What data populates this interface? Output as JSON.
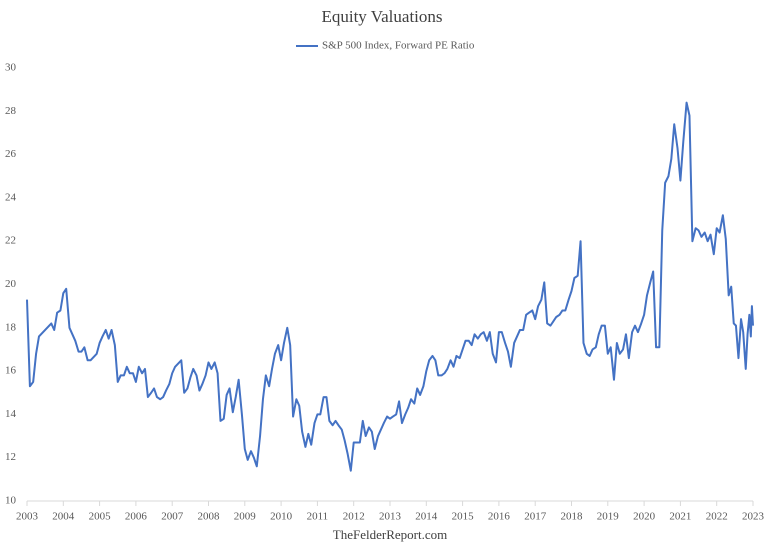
{
  "chart_data": {
    "type": "line",
    "title": "Equity Valuations",
    "source": "TheFelderReport.com",
    "x": [
      2003.0,
      2003.08,
      2003.17,
      2003.25,
      2003.33,
      2003.5,
      2003.67,
      2003.75,
      2003.83,
      2003.92,
      2004.0,
      2004.08,
      2004.17,
      2004.33,
      2004.42,
      2004.5,
      2004.58,
      2004.67,
      2004.75,
      2004.92,
      2005.0,
      2005.08,
      2005.17,
      2005.25,
      2005.33,
      2005.42,
      2005.5,
      2005.58,
      2005.67,
      2005.75,
      2005.83,
      2005.92,
      2006.0,
      2006.08,
      2006.17,
      2006.25,
      2006.33,
      2006.42,
      2006.5,
      2006.58,
      2006.67,
      2006.75,
      2006.83,
      2006.92,
      2007.0,
      2007.08,
      2007.25,
      2007.33,
      2007.42,
      2007.5,
      2007.58,
      2007.67,
      2007.75,
      2007.83,
      2007.92,
      2008.0,
      2008.08,
      2008.17,
      2008.25,
      2008.33,
      2008.42,
      2008.5,
      2008.58,
      2008.67,
      2008.75,
      2008.83,
      2008.92,
      2009.0,
      2009.08,
      2009.17,
      2009.25,
      2009.33,
      2009.42,
      2009.5,
      2009.58,
      2009.67,
      2009.75,
      2009.83,
      2009.92,
      2010.0,
      2010.08,
      2010.17,
      2010.25,
      2010.33,
      2010.42,
      2010.5,
      2010.58,
      2010.67,
      2010.75,
      2010.83,
      2010.92,
      2011.0,
      2011.08,
      2011.17,
      2011.25,
      2011.33,
      2011.42,
      2011.5,
      2011.58,
      2011.67,
      2011.75,
      2011.83,
      2011.92,
      2012.0,
      2012.08,
      2012.17,
      2012.25,
      2012.33,
      2012.42,
      2012.5,
      2012.58,
      2012.67,
      2012.75,
      2012.83,
      2012.92,
      2013.0,
      2013.08,
      2013.17,
      2013.25,
      2013.33,
      2013.42,
      2013.5,
      2013.58,
      2013.67,
      2013.75,
      2013.83,
      2013.92,
      2014.0,
      2014.08,
      2014.17,
      2014.25,
      2014.33,
      2014.42,
      2014.5,
      2014.58,
      2014.67,
      2014.75,
      2014.83,
      2014.92,
      2015.0,
      2015.08,
      2015.17,
      2015.25,
      2015.33,
      2015.42,
      2015.5,
      2015.58,
      2015.67,
      2015.75,
      2015.83,
      2015.92,
      2016.0,
      2016.08,
      2016.17,
      2016.25,
      2016.33,
      2016.42,
      2016.5,
      2016.58,
      2016.67,
      2016.75,
      2016.83,
      2016.92,
      2017.0,
      2017.08,
      2017.17,
      2017.25,
      2017.33,
      2017.42,
      2017.5,
      2017.58,
      2017.67,
      2017.75,
      2017.83,
      2017.92,
      2018.0,
      2018.08,
      2018.17,
      2018.25,
      2018.33,
      2018.42,
      2018.5,
      2018.58,
      2018.67,
      2018.75,
      2018.83,
      2018.92,
      2019.0,
      2019.08,
      2019.17,
      2019.25,
      2019.33,
      2019.42,
      2019.5,
      2019.58,
      2019.67,
      2019.75,
      2019.83,
      2019.92,
      2020.0,
      2020.08,
      2020.17,
      2020.25,
      2020.33,
      2020.42,
      2020.5,
      2020.58,
      2020.67,
      2020.75,
      2020.83,
      2020.92,
      2021.0,
      2021.08,
      2021.17,
      2021.25,
      2021.33,
      2021.42,
      2021.5,
      2021.58,
      2021.67,
      2021.75,
      2021.83,
      2021.92,
      2022.0,
      2022.08,
      2022.17,
      2022.25,
      2022.33,
      2022.4,
      2022.47,
      2022.53,
      2022.6,
      2022.67,
      2022.73,
      2022.8,
      2022.85,
      2022.9,
      2022.94,
      2022.97,
      2023.0
    ],
    "series": [
      {
        "name": "S&P 500 Index, Forward PE Ratio",
        "color": "#4472c4",
        "values": [
          19.3,
          15.3,
          15.5,
          16.8,
          17.6,
          17.9,
          18.2,
          17.9,
          18.7,
          18.8,
          19.6,
          19.8,
          18.0,
          17.4,
          16.9,
          16.9,
          17.1,
          16.5,
          16.5,
          16.8,
          17.3,
          17.6,
          17.9,
          17.5,
          17.9,
          17.2,
          15.5,
          15.8,
          15.8,
          16.2,
          15.9,
          15.9,
          15.5,
          16.2,
          15.9,
          16.1,
          14.8,
          15.0,
          15.2,
          14.8,
          14.7,
          14.8,
          15.1,
          15.4,
          15.9,
          16.2,
          16.5,
          15.0,
          15.2,
          15.7,
          16.1,
          15.8,
          15.1,
          15.4,
          15.8,
          16.4,
          16.1,
          16.4,
          15.9,
          13.7,
          13.8,
          14.9,
          15.2,
          14.1,
          14.8,
          15.6,
          14.0,
          12.4,
          11.9,
          12.3,
          12.0,
          11.6,
          13.0,
          14.7,
          15.8,
          15.3,
          16.1,
          16.8,
          17.2,
          16.5,
          17.3,
          18.0,
          17.2,
          13.9,
          14.7,
          14.4,
          13.2,
          12.5,
          13.1,
          12.6,
          13.6,
          14.0,
          14.0,
          14.8,
          14.8,
          13.7,
          13.5,
          13.7,
          13.5,
          13.3,
          12.8,
          12.2,
          11.4,
          12.7,
          12.7,
          12.7,
          13.7,
          13.0,
          13.4,
          13.2,
          12.4,
          13.0,
          13.3,
          13.6,
          13.9,
          13.8,
          13.9,
          14.0,
          14.6,
          13.6,
          14.0,
          14.3,
          14.7,
          14.5,
          15.2,
          14.9,
          15.3,
          16.0,
          16.5,
          16.7,
          16.5,
          15.8,
          15.8,
          15.9,
          16.1,
          16.5,
          16.2,
          16.7,
          16.6,
          17.0,
          17.4,
          17.4,
          17.2,
          17.7,
          17.5,
          17.7,
          17.8,
          17.4,
          17.8,
          16.8,
          16.4,
          17.8,
          17.8,
          17.3,
          16.9,
          16.2,
          17.3,
          17.6,
          17.9,
          17.9,
          18.6,
          18.7,
          18.8,
          18.4,
          19.0,
          19.3,
          20.1,
          18.2,
          18.1,
          18.3,
          18.5,
          18.6,
          18.8,
          18.8,
          19.3,
          19.7,
          20.3,
          20.4,
          22.0,
          17.3,
          16.8,
          16.7,
          17.0,
          17.1,
          17.7,
          18.1,
          18.1,
          16.8,
          17.1,
          15.6,
          17.3,
          16.8,
          17.0,
          17.7,
          16.6,
          17.8,
          18.1,
          17.8,
          18.2,
          18.6,
          19.5,
          20.1,
          20.6,
          17.1,
          17.1,
          22.5,
          24.7,
          25.0,
          25.8,
          27.4,
          26.3,
          24.8,
          26.6,
          28.4,
          27.8,
          22.0,
          22.6,
          22.5,
          22.2,
          22.4,
          22.0,
          22.3,
          21.4,
          22.6,
          22.4,
          23.2,
          22.1,
          19.5,
          19.9,
          18.2,
          18.1,
          16.6,
          18.4,
          17.8,
          16.1,
          17.7,
          18.6,
          17.6,
          19.0,
          18.1
        ]
      }
    ],
    "xlim": [
      2003,
      2023
    ],
    "xticks": [
      2003,
      2004,
      2005,
      2006,
      2007,
      2008,
      2009,
      2010,
      2011,
      2012,
      2013,
      2014,
      2015,
      2016,
      2017,
      2018,
      2019,
      2020,
      2021,
      2022,
      2023
    ],
    "ylim": [
      10,
      30
    ],
    "yticks": [
      10,
      12,
      14,
      16,
      18,
      20,
      22,
      24,
      26,
      28,
      30
    ],
    "legend": "top",
    "grid": false
  }
}
